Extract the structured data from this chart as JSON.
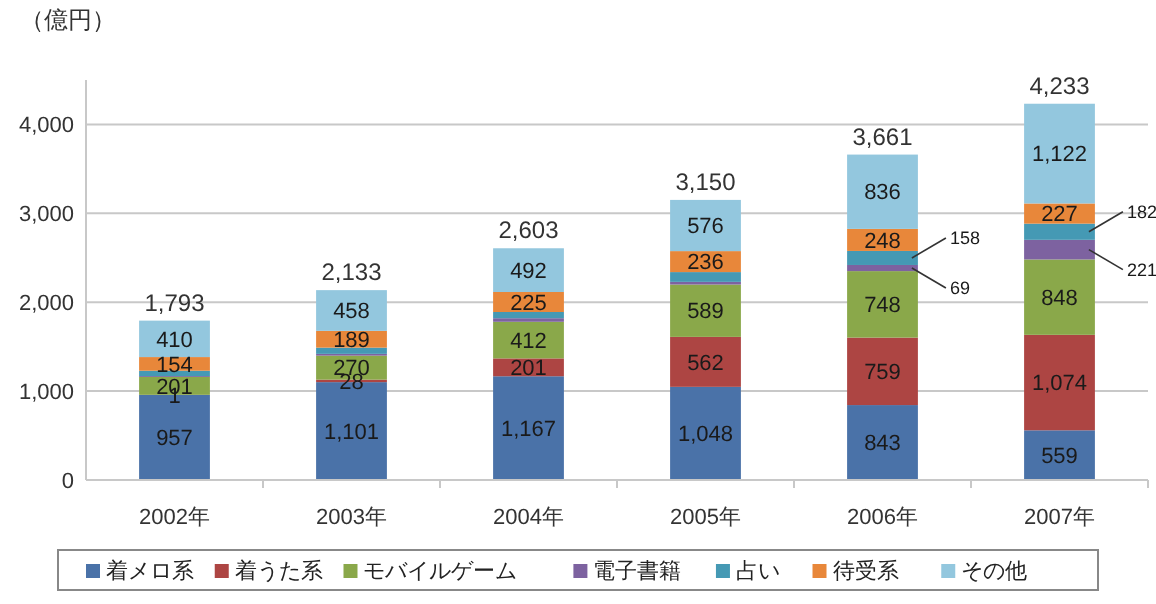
{
  "chart_data": {
    "type": "bar",
    "stacked": true,
    "ylabel": "（億円）",
    "categories": [
      "2002年",
      "2003年",
      "2004年",
      "2005年",
      "2006年",
      "2007年"
    ],
    "series": [
      {
        "name": "着メロ系",
        "color": "#4a72a8",
        "values": [
          957,
          1101,
          1167,
          1048,
          843,
          559
        ],
        "value_labels": [
          "957",
          "1,101",
          "1,167",
          "1,048",
          "843",
          "559"
        ]
      },
      {
        "name": "着うた系",
        "color": "#ad4543",
        "values": [
          1,
          28,
          201,
          562,
          759,
          1074
        ],
        "value_labels": [
          "1",
          "28",
          "201",
          "562",
          "759",
          "1,074"
        ]
      },
      {
        "name": "モバイルゲーム",
        "color": "#8aa84a",
        "values": [
          201,
          270,
          412,
          589,
          748,
          848
        ],
        "value_labels": [
          "201",
          "270",
          "412",
          "589",
          "748",
          "848"
        ]
      },
      {
        "name": "電子書籍",
        "color": "#7d62a0",
        "values": [
          10,
          20,
          40,
          30,
          69,
          221
        ],
        "value_labels": [
          null,
          null,
          null,
          null,
          "69",
          "221"
        ]
      },
      {
        "name": "占い",
        "color": "#4599b4",
        "values": [
          60,
          70,
          70,
          110,
          158,
          182
        ],
        "value_labels": [
          null,
          null,
          null,
          null,
          "158",
          "182"
        ]
      },
      {
        "name": "待受系",
        "color": "#e8873a",
        "values": [
          154,
          189,
          225,
          236,
          248,
          227
        ],
        "value_labels": [
          "154",
          "189",
          "225",
          "236",
          "248",
          "227"
        ]
      },
      {
        "name": "その他",
        "color": "#93c7de",
        "values": [
          410,
          458,
          492,
          576,
          836,
          1122
        ],
        "value_labels": [
          "410",
          "458",
          "492",
          "576",
          "836",
          "1,122"
        ]
      }
    ],
    "totals": [
      "1,793",
      "2,133",
      "2,603",
      "3,150",
      "3,661",
      "4,233"
    ],
    "ylim": [
      0,
      4500
    ],
    "yticks": [
      0,
      {
        "value": 1000,
        "label": "1,000"
      },
      {
        "value": 2000,
        "label": "2,000"
      },
      {
        "value": 3000,
        "label": "3,000"
      },
      {
        "value": 4000,
        "label": "4,000"
      }
    ],
    "grid": "y",
    "legend": "bottom"
  }
}
